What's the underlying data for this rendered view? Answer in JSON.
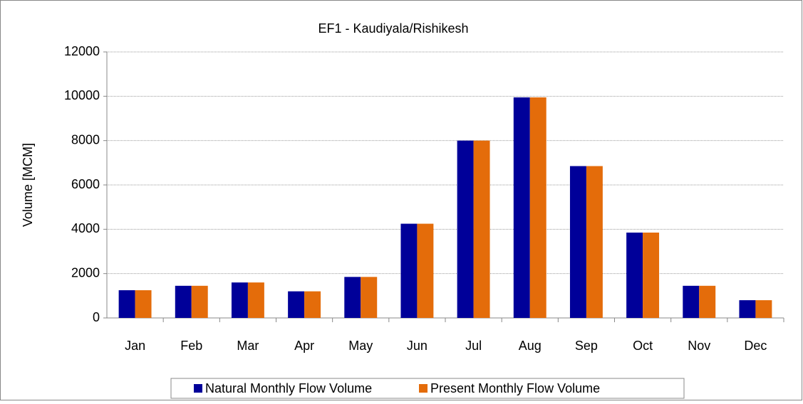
{
  "chart_data": {
    "type": "bar",
    "title": "EF1 - Kaudiyala/Rishikesh",
    "y_label": "Volume [MCM]",
    "categories": [
      "Jan",
      "Feb",
      "Mar",
      "Apr",
      "May",
      "Jun",
      "Jul",
      "Aug",
      "Sep",
      "Oct",
      "Nov",
      "Dec"
    ],
    "series": [
      {
        "name": "Natural Monthly Flow Volume",
        "color": "#000099",
        "values": [
          1250,
          1450,
          1600,
          1200,
          1850,
          4250,
          8000,
          9950,
          6850,
          3850,
          1450,
          800
        ]
      },
      {
        "name": "Present Monthly Flow Volume",
        "color": "#e46c0a",
        "values": [
          1250,
          1450,
          1600,
          1200,
          1850,
          4250,
          8000,
          9950,
          6850,
          3850,
          1450,
          800
        ]
      }
    ],
    "ylim": [
      0,
      12000
    ],
    "yticks": [
      0,
      2000,
      4000,
      6000,
      8000,
      10000,
      12000
    ],
    "grid": true
  }
}
